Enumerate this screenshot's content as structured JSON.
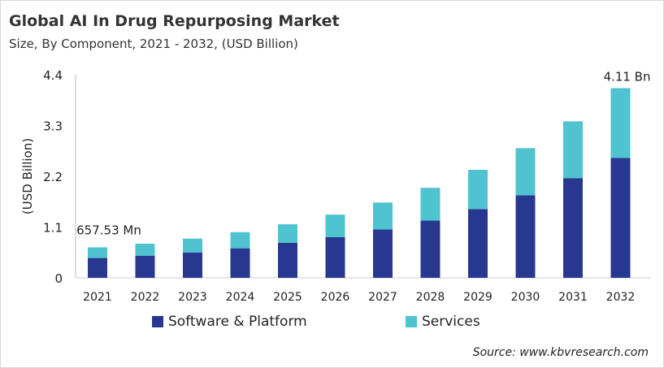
{
  "chart_data": {
    "type": "stacked-bar",
    "title": "Global AI In Drug Repurposing Market",
    "subtitle": "Size, By Component, 2021 - 2032, (USD Billion)",
    "xlabel": "",
    "ylabel": "(USD Billion)",
    "ylim": [
      0,
      4.4
    ],
    "yticks": [
      "0",
      "1.1",
      "2.2",
      "3.3",
      "4.4"
    ],
    "categories": [
      "2021",
      "2022",
      "2023",
      "2024",
      "2025",
      "2026",
      "2027",
      "2028",
      "2029",
      "2030",
      "2031",
      "2032"
    ],
    "series": [
      {
        "name": "Software & Platform",
        "color": "#283891",
        "values": [
          0.43,
          0.48,
          0.55,
          0.64,
          0.76,
          0.88,
          1.05,
          1.24,
          1.49,
          1.79,
          2.16,
          2.6
        ]
      },
      {
        "name": "Services",
        "color": "#4fc3d0",
        "values": [
          0.23,
          0.26,
          0.3,
          0.35,
          0.4,
          0.49,
          0.58,
          0.71,
          0.85,
          1.02,
          1.23,
          1.51
        ]
      }
    ],
    "annotations": [
      {
        "category": "2021",
        "text": "657.53 Mn"
      },
      {
        "category": "2032",
        "text": "4.11 Bn"
      }
    ],
    "grid": false,
    "legend": "bottom"
  },
  "source": "Source: www.kbvresearch.com"
}
